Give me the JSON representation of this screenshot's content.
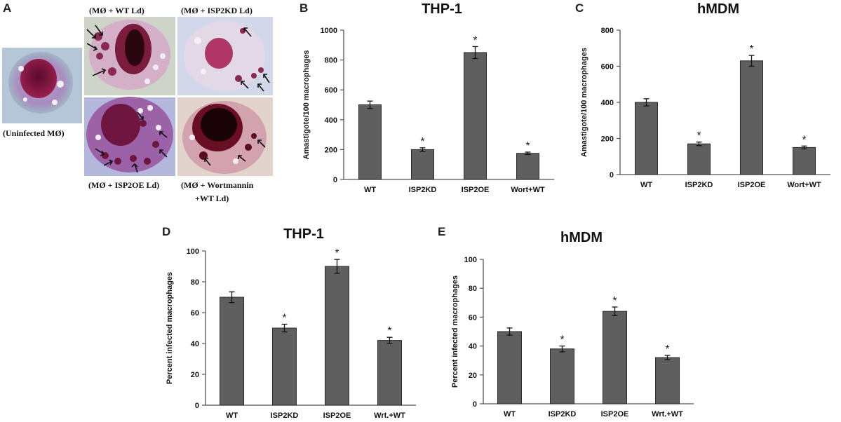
{
  "panel_a": {
    "letter": "A",
    "captions": {
      "uninfected": "(Uninfected MØ)",
      "wt": "(MØ + WT Ld)",
      "kd": "(MØ + ISP2KD Ld)",
      "oe": "(MØ + ISP2OE Ld)",
      "wort_line1": "(MØ + Wortmannin",
      "wort_line2": "+WT Ld)"
    }
  },
  "chart_data": [
    {
      "id": "B",
      "type": "bar",
      "title": "THP-1",
      "categories": [
        "WT",
        "ISP2KD",
        "ISP2OE",
        "Wort+WT"
      ],
      "values": [
        500,
        200,
        850,
        175
      ],
      "errors": [
        25,
        12,
        40,
        8
      ],
      "significant": [
        false,
        true,
        true,
        true
      ],
      "significance_marker": "*",
      "ylabel": "Amastigote/100 macrophages",
      "ylim": [
        0,
        1000
      ],
      "yticks": [
        0,
        200,
        400,
        600,
        800,
        1000
      ]
    },
    {
      "id": "C",
      "type": "bar",
      "title": "hMDM",
      "categories": [
        "WT",
        "ISP2KD",
        "ISP2OE",
        "Wort+WT"
      ],
      "values": [
        400,
        170,
        630,
        150
      ],
      "errors": [
        20,
        10,
        30,
        8
      ],
      "significant": [
        false,
        true,
        true,
        true
      ],
      "significance_marker": "*",
      "ylabel": "Amastigote/100 macrophages",
      "ylim": [
        0,
        800
      ],
      "yticks": [
        0,
        200,
        400,
        600,
        800
      ]
    },
    {
      "id": "D",
      "type": "bar",
      "title": "THP-1",
      "categories": [
        "WT",
        "ISP2KD",
        "ISP2OE",
        "Wrt.+WT"
      ],
      "values": [
        70,
        50,
        90,
        42
      ],
      "errors": [
        3.5,
        2.5,
        4.5,
        2
      ],
      "significant": [
        false,
        true,
        true,
        true
      ],
      "significance_marker": "*",
      "ylabel": "Percent infected macrophages",
      "ylim": [
        0,
        100
      ],
      "yticks": [
        0,
        20,
        40,
        60,
        80,
        100
      ]
    },
    {
      "id": "E",
      "type": "bar",
      "title": "hMDM",
      "categories": [
        "WT",
        "ISP2KD",
        "ISP2OE",
        "Wrt.+WT"
      ],
      "values": [
        50,
        38,
        64,
        32
      ],
      "errors": [
        2.5,
        2,
        3,
        1.5
      ],
      "significant": [
        false,
        true,
        true,
        true
      ],
      "significance_marker": "*",
      "ylabel": "Percent infected macrophages",
      "ylim": [
        0,
        100
      ],
      "yticks": [
        0,
        20,
        40,
        60,
        80,
        100
      ]
    }
  ]
}
